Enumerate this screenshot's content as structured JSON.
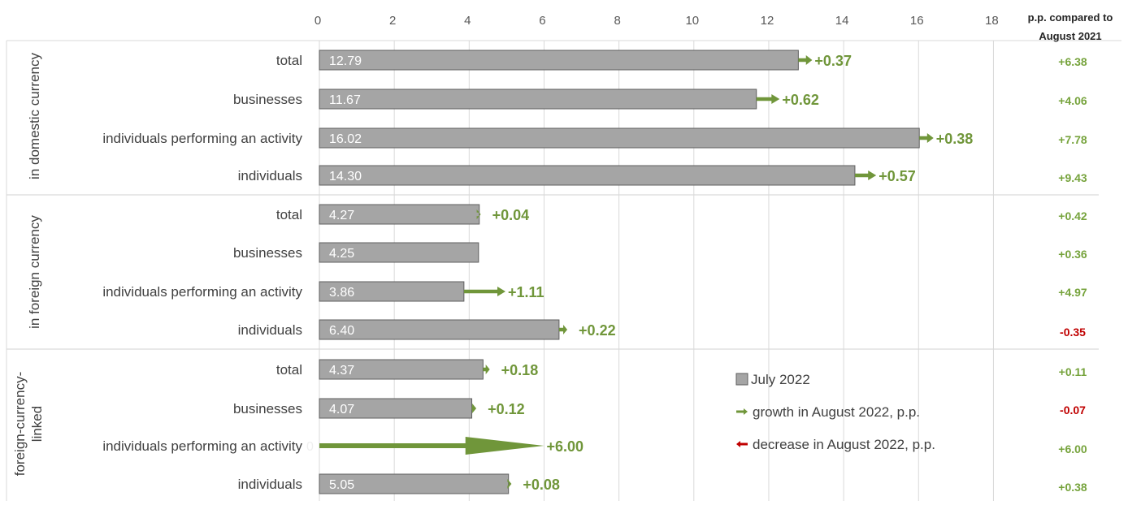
{
  "chart_data": {
    "type": "bar",
    "orientation": "horizontal",
    "x_axis": {
      "ticks": [
        0,
        2,
        4,
        6,
        8,
        10,
        12,
        14,
        16,
        18
      ],
      "xlim": [
        0,
        18
      ],
      "position": "top",
      "grid": true
    },
    "right_column_header": "p.p. compared to August  2021",
    "groups": [
      {
        "name": "in domestic currency",
        "rows": [
          {
            "category": "total",
            "july_2022": 12.79,
            "july_label": "12.79",
            "change_aug_2022": 0.37,
            "change_label": "+0.37",
            "yoy_label": "+6.38"
          },
          {
            "category": "businesses",
            "july_2022": 11.67,
            "july_label": "11.67",
            "change_aug_2022": 0.62,
            "change_label": "+0.62",
            "yoy_label": "+4.06"
          },
          {
            "category": "individuals performing an activity",
            "july_2022": 16.02,
            "july_label": "16.02",
            "change_aug_2022": 0.38,
            "change_label": "+0.38",
            "yoy_label": "+7.78"
          },
          {
            "category": "individuals",
            "july_2022": 14.3,
            "july_label": "14.30",
            "change_aug_2022": 0.57,
            "change_label": "+0.57",
            "yoy_label": "+9.43"
          }
        ]
      },
      {
        "name": "in foreign currency",
        "rows": [
          {
            "category": "total",
            "july_2022": 4.27,
            "july_label": "4.27",
            "change_aug_2022": 0.04,
            "change_label": "+0.04",
            "yoy_label": "+0.42"
          },
          {
            "category": "businesses",
            "july_2022": 4.25,
            "july_label": "4.25",
            "change_aug_2022": 0,
            "change_label": "",
            "yoy_label": "+0.36"
          },
          {
            "category": "individuals performing an activity",
            "july_2022": 3.86,
            "july_label": "3.86",
            "change_aug_2022": 1.11,
            "change_label": "+1.11",
            "yoy_label": "+4.97"
          },
          {
            "category": "individuals",
            "july_2022": 6.4,
            "july_label": "6.40",
            "change_aug_2022": 0.22,
            "change_label": "+0.22",
            "yoy_label": "-0.35"
          }
        ]
      },
      {
        "name": "foreign-currency-linked",
        "rows": [
          {
            "category": "total",
            "july_2022": 4.37,
            "july_label": "4.37",
            "change_aug_2022": 0.18,
            "change_label": "+0.18",
            "yoy_label": "+0.11"
          },
          {
            "category": "businesses",
            "july_2022": 4.07,
            "july_label": "4.07",
            "change_aug_2022": 0.12,
            "change_label": "+0.12",
            "yoy_label": "-0.07"
          },
          {
            "category": "individuals performing an activity",
            "july_2022": 0,
            "july_label": "0",
            "change_aug_2022": 6.0,
            "change_label": "+6.00",
            "yoy_label": "+6.00"
          },
          {
            "category": "individuals",
            "july_2022": 5.05,
            "july_label": "5.05",
            "change_aug_2022": 0.08,
            "change_label": "+0.08",
            "yoy_label": "+0.38"
          }
        ]
      }
    ],
    "legend": {
      "placement": "lower-right",
      "items": [
        {
          "label": "July 2022",
          "kind": "bar"
        },
        {
          "label": "growth in August 2022, p.p.",
          "kind": "growth-arrow"
        },
        {
          "label": "decrease in August  2022, p.p.",
          "kind": "decrease-arrow"
        }
      ]
    },
    "colors": {
      "bar_fill": "#a5a5a5",
      "bar_stroke": "#5f5f5f",
      "growth": "#70963a",
      "decrease": "#c00000",
      "positive_text": "#76a33c",
      "negative_text": "#c00000",
      "grid": "#d9d9d9"
    }
  }
}
